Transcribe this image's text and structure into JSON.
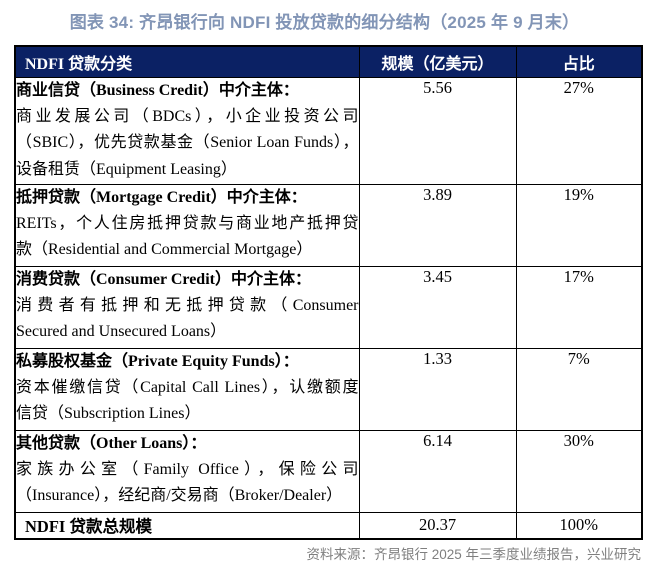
{
  "title": "图表 34: 齐昂银行向 NDFI 投放贷款的细分结构（2025 年 9 月末）",
  "table": {
    "headers": [
      "NDFI 贷款分类",
      "规模（亿美元）",
      "占比"
    ],
    "rows": [
      {
        "category_title": "商业信贷（Business Credit）中介主体：",
        "category_lines": [
          "商业发展公司（BDCs），小企业投资公司",
          "（SBIC），优先贷款基金（Senior Loan Funds），",
          "设备租赁（Equipment Leasing）"
        ],
        "scale": "5.56",
        "share": "27%"
      },
      {
        "category_title": "抵押贷款（Mortgage Credit）中介主体：",
        "category_lines": [
          "REITs，个人住房抵押贷款与商业地产抵押贷",
          "款（Residential and Commercial Mortgage）"
        ],
        "scale": "3.89",
        "share": "19%"
      },
      {
        "category_title": "消费贷款（Consumer Credit）中介主体：",
        "category_lines": [
          "消费者有抵押和无抵押贷款（Consumer",
          "Secured and Unsecured Loans）"
        ],
        "scale": "3.45",
        "share": "17%"
      },
      {
        "category_title": "私募股权基金（Private Equity Funds）：",
        "category_lines": [
          "资本催缴信贷（Capital Call Lines），认缴额度",
          "信贷（Subscription Lines）"
        ],
        "scale": "1.33",
        "share": "7%"
      },
      {
        "category_title": "其他贷款（Other Loans）：",
        "category_lines": [
          "家族办公室（Family Office），保险公司",
          "（Insurance），经纪商/交易商（Broker/Dealer）"
        ],
        "scale": "6.14",
        "share": "30%"
      }
    ],
    "total_row": {
      "label": "NDFI 贷款总规模",
      "scale": "20.37",
      "share": "100%"
    }
  },
  "footer": {
    "source": "资料来源：齐昂银行 2025 年三季度业绩报告，兴业研究"
  },
  "colors": {
    "header_bg": "#0b2164",
    "header_text": "#ffffff",
    "title_text": "#8295b6",
    "body_text": "#000000",
    "source_text": "#7f7f7f",
    "border": "#000000"
  },
  "chart_data": {
    "type": "table",
    "title": "图表 34: 齐昂银行向 NDFI 投放贷款的细分结构（2025 年 9 月末）",
    "columns": [
      "NDFI 贷款分类",
      "规模（亿美元）",
      "占比"
    ],
    "categories": [
      "商业信贷（Business Credit）",
      "抵押贷款（Mortgage Credit）",
      "消费贷款（Consumer Credit）",
      "私募股权基金（Private Equity Funds）",
      "其他贷款（Other Loans）",
      "NDFI 贷款总规模"
    ],
    "series": [
      {
        "name": "规模（亿美元）",
        "values": [
          5.56,
          3.89,
          3.45,
          1.33,
          6.14,
          20.37
        ]
      },
      {
        "name": "占比",
        "values": [
          "27%",
          "19%",
          "17%",
          "7%",
          "30%",
          "100%"
        ]
      }
    ]
  }
}
